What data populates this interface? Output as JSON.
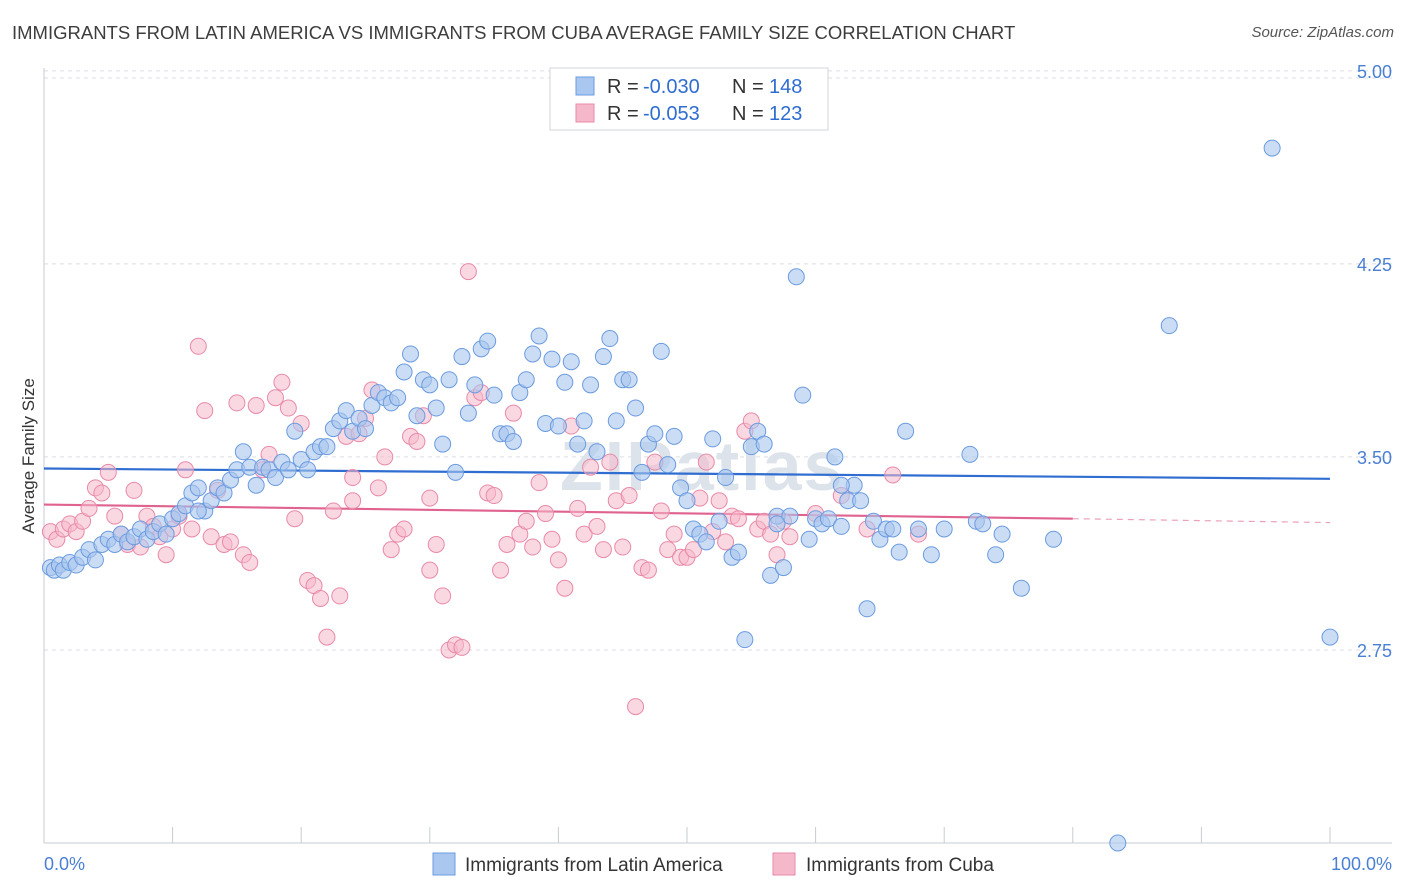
{
  "header": {
    "title": "IMMIGRANTS FROM LATIN AMERICA VS IMMIGRANTS FROM CUBA AVERAGE FAMILY SIZE CORRELATION CHART",
    "source": "Source: ZipAtlas.com"
  },
  "watermark": "ZIPatlas",
  "legend": {
    "rows": [
      {
        "r_label": "R =",
        "r_value": "-0.030",
        "n_label": "N =",
        "n_value": "148",
        "color": "#a9c7ef"
      },
      {
        "r_label": "R =",
        "r_value": "-0.053",
        "n_label": "N =",
        "n_value": "123",
        "color": "#f5b8cb"
      }
    ]
  },
  "colors": {
    "blue_fill": "#a9c7ef",
    "blue_stroke": "#6b9be0",
    "blue_line": "#2f6dd0",
    "pink_fill": "#f5b8cb",
    "pink_stroke": "#e98aa8",
    "pink_line": "#e0628f",
    "tick_label": "#4a7fd4",
    "grid": "#d9dde3"
  },
  "chart_data": {
    "type": "scatter",
    "title": "IMMIGRANTS FROM LATIN AMERICA VS IMMIGRANTS FROM CUBA AVERAGE FAMILY SIZE CORRELATION CHART",
    "xlabel": "",
    "ylabel": "Average Family Size",
    "xlim": [
      0,
      100
    ],
    "ylim": [
      2.0,
      5.05
    ],
    "x_tick_labels": [
      "0.0%",
      "100.0%"
    ],
    "y_ticks": [
      2.75,
      3.5,
      4.25,
      5.0
    ],
    "y_tick_labels": [
      "2.75",
      "3.50",
      "4.25",
      "5.00"
    ],
    "grid": true,
    "series": [
      {
        "name": "Immigrants from Latin America",
        "color": "#a9c7ef",
        "trend": {
          "x": [
            0,
            100
          ],
          "y": [
            3.455,
            3.415
          ]
        },
        "points": [
          [
            0.5,
            3.07
          ],
          [
            0.8,
            3.06
          ],
          [
            1.2,
            3.08
          ],
          [
            1.5,
            3.06
          ],
          [
            2.0,
            3.09
          ],
          [
            2.5,
            3.08
          ],
          [
            3.0,
            3.11
          ],
          [
            3.5,
            3.14
          ],
          [
            4.0,
            3.1
          ],
          [
            4.5,
            3.16
          ],
          [
            5.0,
            3.18
          ],
          [
            5.5,
            3.16
          ],
          [
            6.0,
            3.2
          ],
          [
            6.5,
            3.17
          ],
          [
            7.0,
            3.19
          ],
          [
            7.5,
            3.22
          ],
          [
            8.0,
            3.18
          ],
          [
            8.5,
            3.21
          ],
          [
            9.0,
            3.24
          ],
          [
            9.5,
            3.2
          ],
          [
            10.0,
            3.26
          ],
          [
            10.5,
            3.28
          ],
          [
            11.0,
            3.31
          ],
          [
            11.5,
            3.36
          ],
          [
            12.0,
            3.38
          ],
          [
            12.5,
            3.29
          ],
          [
            13.0,
            3.33
          ],
          [
            13.5,
            3.38
          ],
          [
            14.0,
            3.36
          ],
          [
            14.5,
            3.41
          ],
          [
            15.0,
            3.45
          ],
          [
            15.5,
            3.52
          ],
          [
            16.0,
            3.46
          ],
          [
            16.5,
            3.39
          ],
          [
            17.0,
            3.46
          ],
          [
            17.5,
            3.45
          ],
          [
            18.0,
            3.42
          ],
          [
            18.5,
            3.48
          ],
          [
            19.0,
            3.45
          ],
          [
            19.5,
            3.6
          ],
          [
            20.0,
            3.49
          ],
          [
            20.5,
            3.45
          ],
          [
            21.0,
            3.52
          ],
          [
            21.5,
            3.54
          ],
          [
            22.0,
            3.54
          ],
          [
            22.5,
            3.61
          ],
          [
            23.0,
            3.64
          ],
          [
            23.5,
            3.68
          ],
          [
            24.0,
            3.6
          ],
          [
            24.5,
            3.65
          ],
          [
            25.0,
            3.61
          ],
          [
            25.5,
            3.7
          ],
          [
            26.0,
            3.75
          ],
          [
            26.5,
            3.73
          ],
          [
            27.0,
            3.71
          ],
          [
            27.5,
            3.73
          ],
          [
            28.0,
            3.83
          ],
          [
            28.5,
            3.9
          ],
          [
            29.0,
            3.66
          ],
          [
            29.5,
            3.8
          ],
          [
            30.0,
            3.78
          ],
          [
            30.5,
            3.69
          ],
          [
            31.0,
            3.55
          ],
          [
            31.5,
            3.8
          ],
          [
            32.0,
            3.44
          ],
          [
            32.5,
            3.89
          ],
          [
            33.0,
            3.67
          ],
          [
            33.5,
            3.78
          ],
          [
            34.0,
            3.92
          ],
          [
            34.5,
            3.95
          ],
          [
            35.0,
            3.74
          ],
          [
            35.5,
            3.59
          ],
          [
            36.0,
            3.59
          ],
          [
            36.5,
            3.56
          ],
          [
            37.0,
            3.75
          ],
          [
            37.5,
            3.8
          ],
          [
            38.0,
            3.9
          ],
          [
            38.5,
            3.97
          ],
          [
            39.0,
            3.63
          ],
          [
            39.5,
            3.88
          ],
          [
            40.0,
            3.62
          ],
          [
            40.5,
            3.79
          ],
          [
            41.0,
            3.87
          ],
          [
            41.5,
            3.55
          ],
          [
            42.0,
            3.64
          ],
          [
            42.5,
            3.78
          ],
          [
            43.0,
            3.52
          ],
          [
            43.5,
            3.89
          ],
          [
            44.0,
            3.96
          ],
          [
            44.5,
            3.64
          ],
          [
            45.0,
            3.8
          ],
          [
            45.5,
            3.8
          ],
          [
            46.0,
            3.69
          ],
          [
            46.5,
            3.44
          ],
          [
            47.0,
            3.55
          ],
          [
            47.5,
            3.59
          ],
          [
            48.0,
            3.91
          ],
          [
            48.5,
            3.47
          ],
          [
            49.0,
            3.58
          ],
          [
            49.5,
            3.38
          ],
          [
            50.0,
            3.33
          ],
          [
            50.5,
            3.22
          ],
          [
            51.0,
            3.2
          ],
          [
            51.5,
            3.17
          ],
          [
            52.0,
            3.57
          ],
          [
            52.5,
            3.25
          ],
          [
            53.0,
            3.42
          ],
          [
            53.5,
            3.11
          ],
          [
            54.0,
            3.13
          ],
          [
            54.5,
            2.79
          ],
          [
            55.0,
            3.54
          ],
          [
            55.5,
            3.6
          ],
          [
            56.0,
            3.55
          ],
          [
            56.5,
            3.04
          ],
          [
            57.0,
            3.27
          ],
          [
            57.5,
            3.07
          ],
          [
            58.0,
            3.27
          ],
          [
            58.5,
            4.2
          ],
          [
            59.0,
            3.74
          ],
          [
            59.5,
            3.18
          ],
          [
            60.0,
            3.26
          ],
          [
            60.5,
            3.24
          ],
          [
            61.0,
            3.26
          ],
          [
            61.5,
            3.5
          ],
          [
            62.0,
            3.23
          ],
          [
            62.5,
            3.33
          ],
          [
            63.0,
            3.39
          ],
          [
            63.5,
            3.33
          ],
          [
            64.0,
            2.91
          ],
          [
            64.5,
            3.25
          ],
          [
            65.0,
            3.18
          ],
          [
            65.5,
            3.22
          ],
          [
            66.0,
            3.22
          ],
          [
            66.5,
            3.13
          ],
          [
            67.0,
            3.6
          ],
          [
            68.0,
            3.22
          ],
          [
            69.0,
            3.12
          ],
          [
            70.0,
            3.22
          ],
          [
            72.0,
            3.51
          ],
          [
            72.5,
            3.25
          ],
          [
            73.0,
            3.24
          ],
          [
            74.0,
            3.12
          ],
          [
            74.5,
            3.2
          ],
          [
            76.0,
            2.99
          ],
          [
            78.5,
            3.18
          ],
          [
            87.5,
            4.01
          ],
          [
            95.5,
            4.7
          ],
          [
            100.0,
            2.8
          ],
          [
            83.5,
            2.0
          ],
          [
            57.0,
            3.24
          ],
          [
            62.0,
            3.39
          ],
          [
            12.0,
            3.29
          ]
        ]
      },
      {
        "name": "Immigrants from Cuba",
        "color": "#f5b8cb",
        "trend": {
          "x": [
            0,
            80
          ],
          "y": [
            3.315,
            3.26
          ]
        },
        "trend_dashed": {
          "x": [
            80,
            100
          ],
          "y": [
            3.26,
            3.245
          ]
        },
        "points": [
          [
            0.5,
            3.21
          ],
          [
            1.0,
            3.18
          ],
          [
            1.5,
            3.22
          ],
          [
            2.0,
            3.24
          ],
          [
            2.5,
            3.21
          ],
          [
            3.0,
            3.25
          ],
          [
            3.5,
            3.3
          ],
          [
            4.0,
            3.38
          ],
          [
            4.5,
            3.36
          ],
          [
            5.0,
            3.44
          ],
          [
            5.5,
            3.27
          ],
          [
            6.0,
            3.2
          ],
          [
            6.5,
            3.16
          ],
          [
            7.0,
            3.37
          ],
          [
            7.5,
            3.15
          ],
          [
            8.0,
            3.27
          ],
          [
            8.5,
            3.23
          ],
          [
            9.0,
            3.19
          ],
          [
            9.5,
            3.12
          ],
          [
            10.0,
            3.22
          ],
          [
            10.5,
            3.27
          ],
          [
            11.0,
            3.45
          ],
          [
            11.5,
            3.22
          ],
          [
            12.0,
            3.93
          ],
          [
            12.5,
            3.68
          ],
          [
            13.0,
            3.19
          ],
          [
            13.5,
            3.37
          ],
          [
            14.0,
            3.16
          ],
          [
            14.5,
            3.17
          ],
          [
            15.0,
            3.71
          ],
          [
            15.5,
            3.12
          ],
          [
            16.0,
            3.09
          ],
          [
            16.5,
            3.7
          ],
          [
            17.0,
            3.45
          ],
          [
            17.5,
            3.51
          ],
          [
            18.0,
            3.73
          ],
          [
            18.5,
            3.79
          ],
          [
            19.0,
            3.69
          ],
          [
            19.5,
            3.26
          ],
          [
            20.0,
            3.63
          ],
          [
            20.5,
            3.02
          ],
          [
            21.0,
            3.0
          ],
          [
            21.5,
            2.95
          ],
          [
            22.0,
            2.8
          ],
          [
            22.5,
            3.29
          ],
          [
            23.0,
            2.96
          ],
          [
            23.5,
            3.58
          ],
          [
            24.0,
            3.42
          ],
          [
            24.5,
            3.59
          ],
          [
            25.0,
            3.65
          ],
          [
            25.5,
            3.76
          ],
          [
            26.0,
            3.38
          ],
          [
            26.5,
            3.5
          ],
          [
            27.0,
            3.14
          ],
          [
            27.5,
            3.2
          ],
          [
            28.0,
            3.22
          ],
          [
            28.5,
            3.58
          ],
          [
            29.0,
            3.56
          ],
          [
            29.5,
            3.66
          ],
          [
            30.0,
            3.34
          ],
          [
            30.5,
            3.16
          ],
          [
            31.0,
            2.96
          ],
          [
            31.5,
            2.75
          ],
          [
            32.0,
            2.77
          ],
          [
            32.5,
            2.76
          ],
          [
            33.0,
            4.22
          ],
          [
            33.5,
            3.73
          ],
          [
            34.0,
            3.75
          ],
          [
            34.5,
            3.36
          ],
          [
            35.0,
            3.35
          ],
          [
            35.5,
            3.06
          ],
          [
            36.0,
            3.16
          ],
          [
            36.5,
            3.67
          ],
          [
            37.0,
            3.2
          ],
          [
            37.5,
            3.25
          ],
          [
            38.0,
            3.15
          ],
          [
            38.5,
            3.4
          ],
          [
            39.0,
            3.28
          ],
          [
            39.5,
            3.18
          ],
          [
            40.0,
            3.1
          ],
          [
            40.5,
            2.99
          ],
          [
            41.0,
            3.62
          ],
          [
            41.5,
            3.3
          ],
          [
            42.0,
            3.2
          ],
          [
            42.5,
            3.46
          ],
          [
            43.0,
            3.23
          ],
          [
            43.5,
            3.14
          ],
          [
            44.0,
            3.48
          ],
          [
            44.5,
            3.33
          ],
          [
            45.0,
            3.15
          ],
          [
            45.5,
            3.35
          ],
          [
            46.0,
            2.53
          ],
          [
            46.5,
            3.07
          ],
          [
            47.0,
            3.06
          ],
          [
            47.5,
            3.48
          ],
          [
            48.0,
            3.29
          ],
          [
            48.5,
            3.14
          ],
          [
            49.0,
            3.2
          ],
          [
            49.5,
            3.11
          ],
          [
            50.0,
            3.11
          ],
          [
            50.5,
            3.14
          ],
          [
            51.0,
            3.34
          ],
          [
            51.5,
            3.48
          ],
          [
            52.0,
            3.21
          ],
          [
            52.5,
            3.33
          ],
          [
            53.0,
            3.17
          ],
          [
            53.5,
            3.27
          ],
          [
            54.0,
            3.26
          ],
          [
            54.5,
            3.6
          ],
          [
            55.0,
            3.64
          ],
          [
            55.5,
            3.22
          ],
          [
            56.0,
            3.25
          ],
          [
            56.5,
            3.2
          ],
          [
            57.0,
            3.12
          ],
          [
            57.5,
            3.25
          ],
          [
            58.0,
            3.19
          ],
          [
            60.0,
            3.28
          ],
          [
            62.0,
            3.35
          ],
          [
            64.0,
            3.22
          ],
          [
            66.0,
            3.43
          ],
          [
            68.0,
            3.2
          ],
          [
            30.0,
            3.06
          ],
          [
            24.0,
            3.33
          ]
        ]
      }
    ]
  },
  "bottom_legend": {
    "items": [
      {
        "label": "Immigrants from Latin America",
        "color": "#a9c7ef"
      },
      {
        "label": "Immigrants from Cuba",
        "color": "#f5b8cb"
      }
    ]
  }
}
